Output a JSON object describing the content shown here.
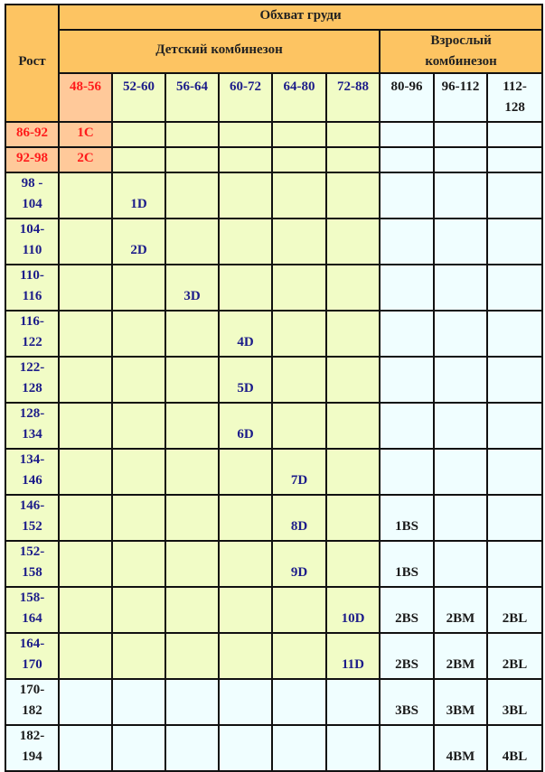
{
  "header": {
    "height_label": "Рост",
    "chest_label": "Обхват груди",
    "child_label": "Детский комбинезон",
    "adult_label": "Взрослый комбинезон",
    "sizes": [
      "48-56",
      "52-60",
      "56-64",
      "60-72",
      "64-80",
      "72-88",
      "80-96",
      "96-112",
      "112-128"
    ]
  },
  "colors": {
    "header": "#fdc462",
    "peach": "#ffc99a",
    "child": "#f1fcc6",
    "adult": "#f0feff",
    "red": "#ff1a1a",
    "blue": "#1c1c8a"
  },
  "rows": [
    {
      "label": "86-92",
      "cells": [
        "1C",
        "",
        "",
        "",
        "",
        "",
        "",
        "",
        ""
      ]
    },
    {
      "label": "92-98",
      "cells": [
        "2C",
        "",
        "",
        "",
        "",
        "",
        "",
        "",
        ""
      ]
    },
    {
      "label": "98 - 104",
      "cells": [
        "",
        "1D",
        "",
        "",
        "",
        "",
        "",
        "",
        ""
      ]
    },
    {
      "label": "104-110",
      "cells": [
        "",
        "2D",
        "",
        "",
        "",
        "",
        "",
        "",
        ""
      ]
    },
    {
      "label": "110-116",
      "cells": [
        "",
        "",
        "3D",
        "",
        "",
        "",
        "",
        "",
        ""
      ]
    },
    {
      "label": "116-122",
      "cells": [
        "",
        "",
        "",
        "4D",
        "",
        "",
        "",
        "",
        ""
      ]
    },
    {
      "label": "122-128",
      "cells": [
        "",
        "",
        "",
        "5D",
        "",
        "",
        "",
        "",
        ""
      ]
    },
    {
      "label": "128-134",
      "cells": [
        "",
        "",
        "",
        "6D",
        "",
        "",
        "",
        "",
        ""
      ]
    },
    {
      "label": "134-146",
      "cells": [
        "",
        "",
        "",
        "",
        "7D",
        "",
        "",
        "",
        ""
      ]
    },
    {
      "label": "146-152",
      "cells": [
        "",
        "",
        "",
        "",
        "8D",
        "",
        "1BS",
        "",
        ""
      ]
    },
    {
      "label": "152-158",
      "cells": [
        "",
        "",
        "",
        "",
        "9D",
        "",
        "1BS",
        "",
        ""
      ]
    },
    {
      "label": "158-164",
      "cells": [
        "",
        "",
        "",
        "",
        "",
        "10D",
        "2BS",
        "2BM",
        "2BL"
      ]
    },
    {
      "label": "164-170",
      "cells": [
        "",
        "",
        "",
        "",
        "",
        "11D",
        "2BS",
        "2BM",
        "2BL"
      ]
    },
    {
      "label": "170-182",
      "cells": [
        "",
        "",
        "",
        "",
        "",
        "",
        "3BS",
        "3BM",
        "3BL"
      ]
    },
    {
      "label": "182-194",
      "cells": [
        "",
        "",
        "",
        "",
        "",
        "",
        "",
        "4BM",
        "4BL"
      ]
    }
  ]
}
